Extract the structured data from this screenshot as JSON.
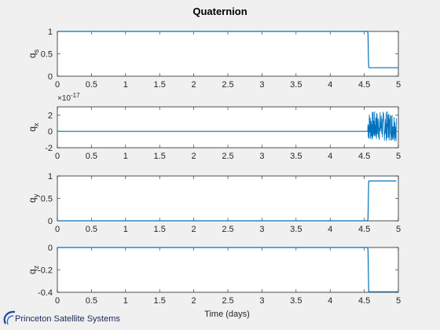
{
  "figure": {
    "title": "Quaternion",
    "xlabel": "Time (days)",
    "logo_text": "Princeton Satellite Systems"
  },
  "colors": {
    "background": "#f0f0f0",
    "axes_background": "#ffffff",
    "line": "#0072bd",
    "text": "#262626",
    "axis_line": "#262626"
  },
  "chart_data": [
    {
      "type": "line",
      "ylabel": "q",
      "ylabel_sub": "s",
      "xlim": [
        0,
        5
      ],
      "ylim": [
        0,
        1
      ],
      "xticks": [
        "0",
        "0.5",
        "1",
        "1.5",
        "2",
        "2.5",
        "3",
        "3.5",
        "4",
        "4.5",
        "5"
      ],
      "yticks": [
        0,
        0.5,
        1
      ],
      "ytick_labels": [
        "0",
        "0.5",
        "1"
      ],
      "exponent_label": "",
      "series": [
        {
          "x": [
            0,
            4.55,
            4.555,
            4.56,
            4.565,
            4.57,
            5
          ],
          "y": [
            1,
            1,
            0.95,
            0.5,
            0.2,
            0.19,
            0.19
          ]
        }
      ]
    },
    {
      "type": "line",
      "ylabel": "q",
      "ylabel_sub": "x",
      "xlim": [
        0,
        5
      ],
      "ylim": [
        -2,
        3
      ],
      "xticks": [
        "0",
        "0.5",
        "1",
        "1.5",
        "2",
        "2.5",
        "3",
        "3.5",
        "4",
        "4.5",
        "5"
      ],
      "yticks": [
        -2,
        0,
        2
      ],
      "ytick_labels": [
        "-2",
        "0",
        "2"
      ],
      "exponent_label": "×10",
      "exponent_power": "-17",
      "series": [
        {
          "x": [
            0,
            4.55
          ],
          "y": [
            0,
            0
          ]
        }
      ],
      "noise_band": {
        "x_start": 4.55,
        "x_end": 4.97,
        "y_min": -1.2,
        "y_max": 2.5
      }
    },
    {
      "type": "line",
      "ylabel": "q",
      "ylabel_sub": "y",
      "xlim": [
        0,
        5
      ],
      "ylim": [
        0,
        1
      ],
      "xticks": [
        "0",
        "0.5",
        "1",
        "1.5",
        "2",
        "2.5",
        "3",
        "3.5",
        "4",
        "4.5",
        "5"
      ],
      "yticks": [
        0,
        0.5,
        1
      ],
      "ytick_labels": [
        "0",
        "0.5",
        "1"
      ],
      "exponent_label": "",
      "series": [
        {
          "x": [
            0,
            4.55,
            4.555,
            4.56,
            4.565,
            4.57,
            4.97
          ],
          "y": [
            0,
            0,
            0.05,
            0.5,
            0.88,
            0.89,
            0.89
          ]
        }
      ]
    },
    {
      "type": "line",
      "ylabel": "q",
      "ylabel_sub": "z",
      "xlim": [
        0,
        5
      ],
      "ylim": [
        -0.4,
        0
      ],
      "xticks": [
        "0",
        "0.5",
        "1",
        "1.5",
        "2",
        "2.5",
        "3",
        "3.5",
        "4",
        "4.5",
        "5"
      ],
      "yticks": [
        -0.4,
        -0.2,
        0
      ],
      "ytick_labels": [
        "-0.4",
        "-0.2",
        "0"
      ],
      "exponent_label": "",
      "series": [
        {
          "x": [
            0,
            4.55,
            4.555,
            4.56,
            4.565,
            4.57,
            5
          ],
          "y": [
            0,
            0,
            -0.02,
            -0.2,
            -0.39,
            -0.395,
            -0.395
          ]
        }
      ]
    }
  ]
}
